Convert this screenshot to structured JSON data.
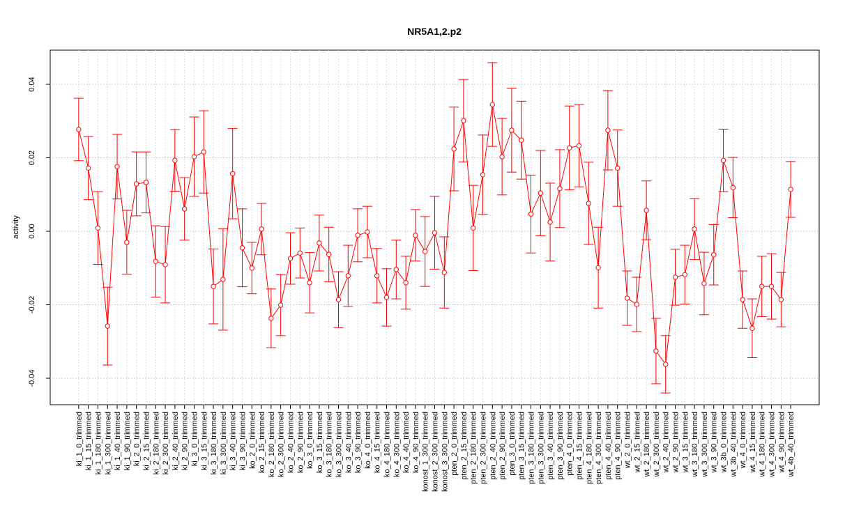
{
  "chart_data": {
    "type": "line",
    "title": "NR5A1,2.p2",
    "ylabel": "activity",
    "categories": [
      "ki_1_0_trimmed",
      "ki_1_15_trimmed",
      "ki_1_180_trimmed",
      "ki_1_300_trimmed",
      "ki_1_40_trimmed",
      "ki_1_90_trimmed",
      "ki_2_0_trimmed",
      "ki_2_15_trimmed",
      "ki_2_180_trimmed",
      "ki_2_300_trimmed",
      "ki_2_40_trimmed",
      "ki_2_90_trimmed",
      "ki_3_0_trimmed",
      "ki_3_15_trimmed",
      "ki_3_180_trimmed",
      "ki_3_300_trimmed",
      "ki_3_40_trimmed",
      "ki_3_90_trimmed",
      "ko_2_0_trimmed",
      "ko_2_15_trimmed",
      "ko_2_180_trimmed",
      "ko_2_300_trimmed",
      "ko_2_40_trimmed",
      "ko_2_90_trimmed",
      "ko_3_0_trimmed",
      "ko_3_15_trimmed",
      "ko_3_180_trimmed",
      "ko_3_300_trimmed",
      "ko_3_40_trimmed",
      "ko_3_90_trimmed",
      "ko_4_0_trimmed",
      "ko_4_15_trimmed",
      "ko_4_180_trimmed",
      "ko_4_300_trimmed",
      "ko_4_40_trimmed",
      "ko_4_90_trimmed",
      "konost_1_300_trimmed",
      "konost_2_300_trimmed",
      "konost_3_300_trimmed",
      "pten_2_0_trimmed",
      "pten_2_15_trimmed",
      "pten_2_180_trimmed",
      "pten_2_300_trimmed",
      "pten_2_40_trimmed",
      "pten_2_90_trimmed",
      "pten_3_0_trimmed",
      "pten_3_15_trimmed",
      "pten_3_180_trimmed",
      "pten_3_300_trimmed",
      "pten_3_40_trimmed",
      "pten_3_90_trimmed",
      "pten_4_0_trimmed",
      "pten_4_15_trimmed",
      "pten_4_180_trimmed",
      "pten_4_300_trimmed",
      "pten_4_40_trimmed",
      "pten_4_90_trimmed",
      "wt_2_0_trimmed",
      "wt_2_15_trimmed",
      "wt_2_180_trimmed",
      "wt_2_300_trimmed",
      "wt_2_40_trimmed",
      "wt_2_90_trimmed",
      "wt_3_15_trimmed",
      "wt_3_180_trimmed",
      "wt_3_300_trimmed",
      "wt_3_90_trimmed",
      "wt_3b_0_trimmed",
      "wt_3b_40_trimmed",
      "wt_4_0_trimmed",
      "wt_4_15_trimmed",
      "wt_4_180_trimmed",
      "wt_4_300_trimmed",
      "wt_4_90_trimmed",
      "wt_4b_40_trimmed"
    ],
    "series": [
      {
        "color": "#ff0000",
        "values": [
          0.0277,
          0.0172,
          0.0009,
          -0.0258,
          0.0176,
          -0.003,
          0.0129,
          0.0133,
          -0.0082,
          -0.0091,
          0.0193,
          0.0061,
          0.0203,
          0.0216,
          -0.015,
          -0.0131,
          0.0157,
          -0.0045,
          -0.01,
          0.0006,
          -0.0237,
          -0.0201,
          -0.0074,
          -0.0059,
          -0.014,
          -0.0032,
          -0.0063,
          -0.0186,
          -0.0121,
          -0.0011,
          -0.0002,
          -0.0121,
          -0.018,
          -0.0104,
          -0.014,
          -0.0011,
          -0.0055,
          -0.0004,
          -0.0112,
          0.0224,
          0.0301,
          0.0009,
          0.0154,
          0.0345,
          0.0203,
          0.0275,
          0.0248,
          0.0047,
          0.0104,
          0.0025,
          0.0116,
          0.0227,
          0.0233,
          0.0076,
          -0.0099,
          0.0275,
          0.0172,
          -0.0182,
          -0.0199,
          0.0057,
          -0.0326,
          -0.0362,
          -0.0125,
          -0.0118,
          0.0006,
          -0.0142,
          -0.0064,
          0.0193,
          0.0119,
          -0.0186,
          -0.0264,
          -0.015,
          -0.015,
          -0.0186,
          0.0114
        ],
        "errors": [
          0.0085,
          0.0086,
          0.0099,
          0.0106,
          0.0088,
          0.0087,
          0.0087,
          0.0083,
          0.0097,
          0.0104,
          0.0084,
          0.0085,
          0.0108,
          0.0112,
          0.0102,
          0.0138,
          0.0123,
          0.0106,
          0.007,
          0.007,
          0.008,
          0.0083,
          0.007,
          0.0068,
          0.0082,
          0.0076,
          0.0074,
          0.0076,
          0.0083,
          0.0072,
          0.007,
          0.0074,
          0.0078,
          0.008,
          0.0072,
          0.007,
          0.0095,
          0.0099,
          0.0097,
          0.0114,
          0.0112,
          0.0116,
          0.0108,
          0.0114,
          0.0104,
          0.0114,
          0.0106,
          0.0106,
          0.0116,
          0.0106,
          0.0106,
          0.0114,
          0.0112,
          0.0112,
          0.011,
          0.0108,
          0.0104,
          0.0074,
          0.0074,
          0.008,
          0.0089,
          0.0078,
          0.0076,
          0.008,
          0.0083,
          0.0085,
          0.0082,
          0.0085,
          0.0082,
          0.0078,
          0.008,
          0.0082,
          0.0089,
          0.0074,
          0.0076
        ]
      }
    ],
    "ylim": [
      -0.0472,
      0.0493
    ],
    "yticks": [
      -0.04,
      -0.02,
      {
        "value": 0,
        "label": "0.00"
      },
      0.02,
      0.04
    ],
    "grid": true
  }
}
